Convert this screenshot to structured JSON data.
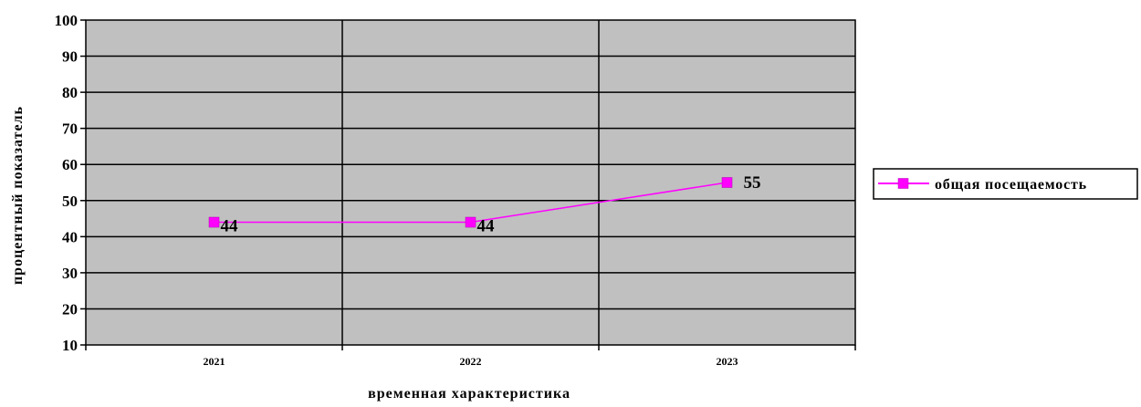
{
  "chart_data": {
    "type": "line",
    "categories": [
      "2021",
      "2022",
      "2023"
    ],
    "series": [
      {
        "name": "общая посещаемость",
        "values": [
          44,
          44,
          55
        ],
        "color": "#ff00ff"
      }
    ],
    "xlabel": "временная характеристика",
    "ylabel": "процентный показатель",
    "ylim": [
      10,
      100
    ],
    "yticks": [
      10,
      20,
      30,
      40,
      50,
      60,
      70,
      80,
      90,
      100
    ],
    "grid": true,
    "legend": "right",
    "colors": {
      "plot_background": "#c0c0c0",
      "line": "#ff00ff",
      "marker": "#ff00ff",
      "gridline": "#000000"
    },
    "data_labels": [
      "44",
      "44",
      "55"
    ]
  }
}
